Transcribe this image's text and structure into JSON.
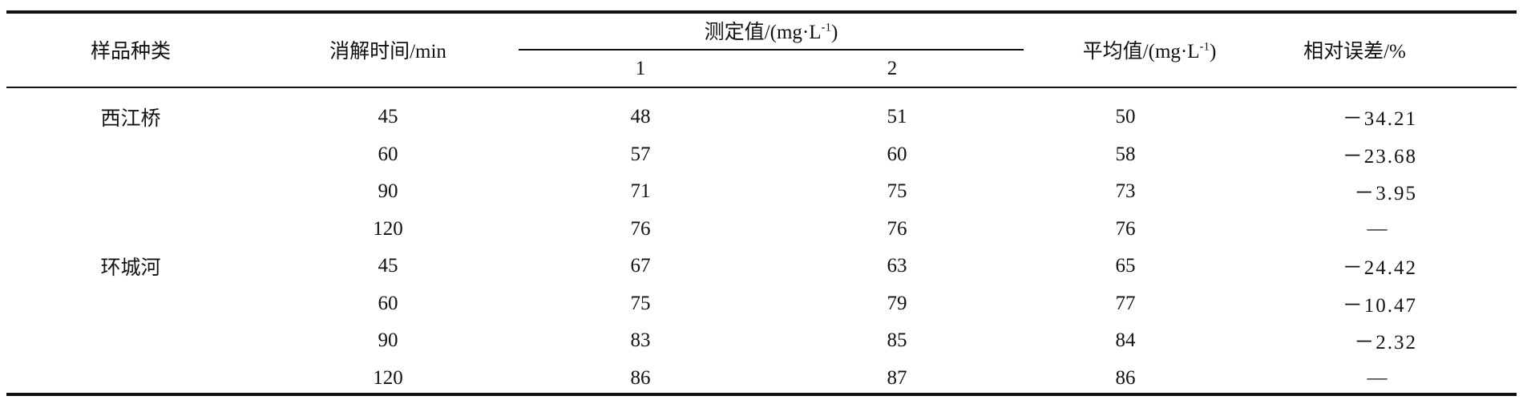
{
  "table": {
    "headers": {
      "sample_type": "样品种类",
      "digestion_time": "消解时间/min",
      "measured": "测定值/(mg·L",
      "measured_sup": "-1",
      "measured_close": ")",
      "sub1": "1",
      "sub2": "2",
      "average": "平均值/(mg·L",
      "average_sup": "-1",
      "average_close": ")",
      "relative_error": "相对误差/%"
    },
    "rows": [
      {
        "sample": "西江桥",
        "time": "45",
        "m1": "48",
        "m2": "51",
        "avg": "50",
        "err": "－34.21"
      },
      {
        "sample": "",
        "time": "60",
        "m1": "57",
        "m2": "60",
        "avg": "58",
        "err": "－23.68"
      },
      {
        "sample": "",
        "time": "90",
        "m1": "71",
        "m2": "75",
        "avg": "73",
        "err": "－3.95"
      },
      {
        "sample": "",
        "time": "120",
        "m1": "76",
        "m2": "76",
        "avg": "76",
        "err": "—"
      },
      {
        "sample": "环城河",
        "time": "45",
        "m1": "67",
        "m2": "63",
        "avg": "65",
        "err": "－24.42"
      },
      {
        "sample": "",
        "time": "60",
        "m1": "75",
        "m2": "79",
        "avg": "77",
        "err": "－10.47"
      },
      {
        "sample": "",
        "time": "90",
        "m1": "83",
        "m2": "85",
        "avg": "84",
        "err": "－2.32"
      },
      {
        "sample": "",
        "time": "120",
        "m1": "86",
        "m2": "87",
        "avg": "86",
        "err": "—"
      }
    ]
  }
}
